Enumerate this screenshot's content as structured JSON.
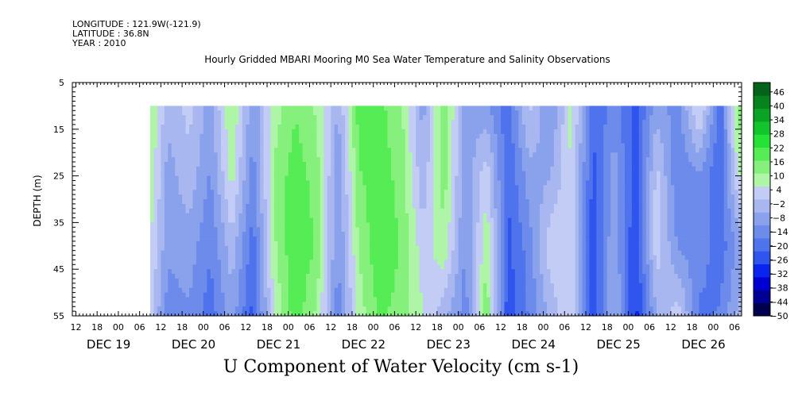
{
  "header": {
    "longitude": "LONGITUDE : 121.9W(-121.9)",
    "latitude": "LATITUDE : 36.8N",
    "year": "YEAR : 2010"
  },
  "chart_data": {
    "type": "heatmap",
    "title": "Hourly Gridded MBARI Mooring M0 Sea Water Temperature and Salinity Observations",
    "xlabel": "U Component of Water Velocity (cm s-1)",
    "ylabel": "DEPTH (m)",
    "y_ticks": [
      5,
      15,
      25,
      35,
      45,
      55
    ],
    "y_range": [
      5,
      55
    ],
    "y_data_range": [
      10,
      55
    ],
    "x_hour_ticks": [
      "12",
      "18",
      "00",
      "06",
      "12",
      "18",
      "00",
      "06",
      "12",
      "18",
      "00",
      "06",
      "12",
      "18",
      "00",
      "06",
      "12",
      "18",
      "00",
      "06",
      "12",
      "18",
      "00",
      "06",
      "12",
      "18",
      "00",
      "06",
      "12",
      "18",
      "00",
      "06"
    ],
    "x_day_labels": [
      "DEC 19",
      "DEC 20",
      "DEC 21",
      "DEC 22",
      "DEC 23",
      "DEC 24",
      "DEC 25",
      "DEC 26"
    ],
    "x_range_hours_from_dec19_00": [
      -13,
      176
    ],
    "data_start_hours_from_dec19_00": 9,
    "colorbar": {
      "labels": [
        46,
        40,
        34,
        28,
        22,
        16,
        10,
        4,
        -2,
        -8,
        -14,
        -20,
        -26,
        -32,
        -38,
        -44,
        -50
      ],
      "range": [
        -50,
        50
      ],
      "colors": [
        "#00004f",
        "#000095",
        "#0000d0",
        "#0a24f0",
        "#2f55ee",
        "#4f73ec",
        "#6c8bea",
        "#8aa2ec",
        "#a8b7f0",
        "#c3ccf5",
        "#aef5a8",
        "#86f07c",
        "#55ec55",
        "#24e336",
        "#12c52c",
        "#0aa324",
        "#06831c",
        "#04631a"
      ]
    },
    "description_columns": [
      {
        "t": 9,
        "v": [
          12,
          10,
          6,
          2
        ]
      },
      {
        "t": 14,
        "v": [
          -4,
          -8,
          -10,
          -14
        ]
      },
      {
        "t": 20,
        "v": [
          2,
          -2,
          -8,
          -12
        ]
      },
      {
        "t": 26,
        "v": [
          -8,
          -12,
          -16,
          -20
        ]
      },
      {
        "t": 32,
        "v": [
          12,
          8,
          -2,
          -8
        ]
      },
      {
        "t": 38,
        "v": [
          -10,
          -14,
          -20,
          -24
        ]
      },
      {
        "t": 44,
        "v": [
          8,
          12,
          10,
          6
        ]
      },
      {
        "t": 50,
        "v": [
          16,
          20,
          22,
          20
        ]
      },
      {
        "t": 56,
        "v": [
          10,
          14,
          16,
          10
        ]
      },
      {
        "t": 62,
        "v": [
          -6,
          -10,
          -12,
          -14
        ]
      },
      {
        "t": 68,
        "v": [
          20,
          16,
          12,
          8
        ]
      },
      {
        "t": 74,
        "v": [
          18,
          20,
          22,
          18
        ]
      },
      {
        "t": 80,
        "v": [
          12,
          14,
          16,
          14
        ]
      },
      {
        "t": 86,
        "v": [
          -8,
          -4,
          2,
          6
        ]
      },
      {
        "t": 92,
        "v": [
          16,
          14,
          10,
          -4
        ]
      },
      {
        "t": 98,
        "v": [
          -8,
          -10,
          -12,
          -14
        ]
      },
      {
        "t": 104,
        "v": [
          -10,
          4,
          10,
          16
        ]
      },
      {
        "t": 110,
        "v": [
          -20,
          -22,
          -24,
          -26
        ]
      },
      {
        "t": 116,
        "v": [
          2,
          -8,
          -14,
          -16
        ]
      },
      {
        "t": 122,
        "v": [
          -12,
          -6,
          4,
          -4
        ]
      },
      {
        "t": 128,
        "v": [
          8,
          6,
          4,
          6
        ]
      },
      {
        "t": 134,
        "v": [
          -22,
          -24,
          -26,
          -28
        ]
      },
      {
        "t": 140,
        "v": [
          -14,
          -8,
          -6,
          -4
        ]
      },
      {
        "t": 146,
        "v": [
          -24,
          -26,
          -28,
          -30
        ]
      },
      {
        "t": 152,
        "v": [
          -8,
          2,
          4,
          -6
        ]
      },
      {
        "t": 158,
        "v": [
          -14,
          -16,
          -12,
          4
        ]
      },
      {
        "t": 164,
        "v": [
          8,
          -12,
          -14,
          -18
        ]
      },
      {
        "t": 170,
        "v": [
          -20,
          -22,
          -20,
          -16
        ]
      },
      {
        "t": 175,
        "v": [
          14,
          6,
          -10,
          -4
        ]
      }
    ]
  }
}
